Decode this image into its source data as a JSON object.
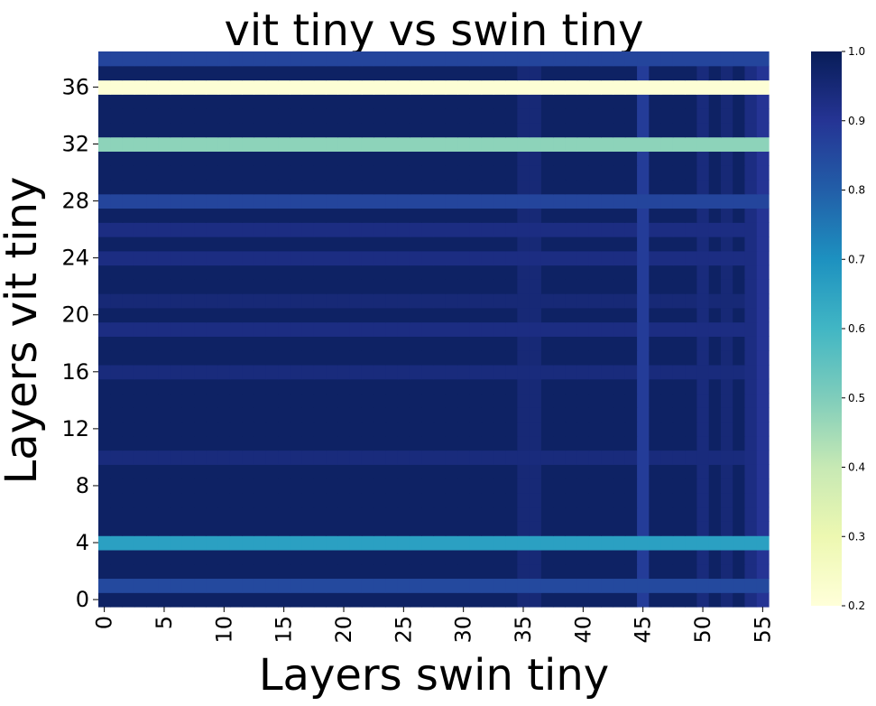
{
  "chart_data": {
    "type": "heatmap",
    "title": "vit tiny vs swin tiny",
    "xlabel": "Layers swin tiny",
    "ylabel": "Layers vit tiny",
    "x_count": 56,
    "y_count": 39,
    "x_ticks": [
      0,
      5,
      10,
      15,
      20,
      25,
      30,
      35,
      40,
      45,
      50,
      55
    ],
    "y_ticks": [
      0,
      4,
      8,
      12,
      16,
      20,
      24,
      28,
      32,
      36
    ],
    "colormap": "YlGnBu",
    "colorbar": {
      "min": 0.2,
      "max": 1.0,
      "ticks": [
        0.2,
        0.3,
        0.4,
        0.5,
        0.6,
        0.7,
        0.8,
        0.9,
        1.0
      ]
    },
    "base_value": 0.98,
    "row_values": [
      {
        "row": 36,
        "value": 0.21
      },
      {
        "row": 32,
        "value": 0.48
      },
      {
        "row": 28,
        "value": 0.86
      },
      {
        "row": 26,
        "value": 0.93
      },
      {
        "row": 24,
        "value": 0.93
      },
      {
        "row": 21,
        "value": 0.95
      },
      {
        "row": 19,
        "value": 0.93
      },
      {
        "row": 16,
        "value": 0.94
      },
      {
        "row": 10,
        "value": 0.94
      },
      {
        "row": 4,
        "value": 0.66
      },
      {
        "row": 1,
        "value": 0.85
      },
      {
        "row": 38,
        "value": 0.86
      }
    ],
    "column_values": [
      {
        "col": 35,
        "value": 0.95
      },
      {
        "col": 36,
        "value": 0.95
      },
      {
        "col": 45,
        "value": 0.88
      },
      {
        "col": 50,
        "value": 0.94
      },
      {
        "col": 52,
        "value": 0.95
      },
      {
        "col": 54,
        "value": 0.93
      },
      {
        "col": 55,
        "value": 0.9
      }
    ]
  }
}
